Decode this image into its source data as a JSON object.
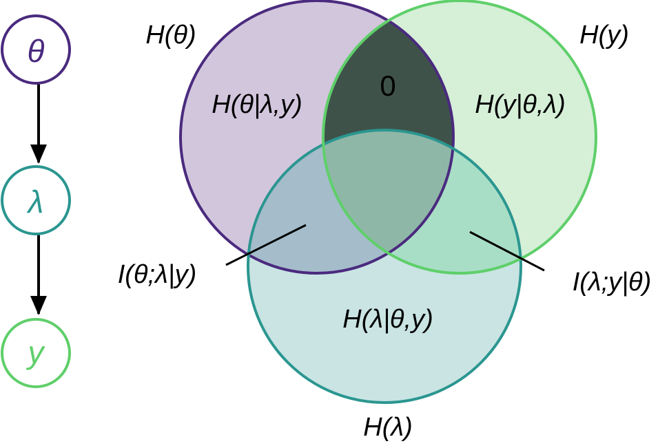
{
  "graph": {
    "nodes": [
      {
        "id": "theta",
        "label": "θ",
        "color": "#4a2a7e"
      },
      {
        "id": "lambda",
        "label": "λ",
        "color": "#2b9690"
      },
      {
        "id": "y",
        "label": "y",
        "color": "#5fcf6a"
      }
    ],
    "edges": [
      {
        "from": "theta",
        "to": "lambda"
      },
      {
        "from": "lambda",
        "to": "y"
      }
    ]
  },
  "venn": {
    "sets": {
      "theta": {
        "label": "H(θ)",
        "stroke": "#4a2a7e",
        "fill": "#d2c6dd"
      },
      "y": {
        "label": "H(y)",
        "stroke": "#5fcf6a",
        "fill": "#d6efd7"
      },
      "lambda": {
        "label": "H(λ)",
        "stroke": "#2b9690",
        "fill": "#c9e4e3"
      }
    },
    "regions": {
      "theta_only": "H(θ|λ,y)",
      "y_only": "H(y|θ,λ)",
      "lambda_only": "H(λ|θ,y)",
      "theta_y_not_lambda": "0",
      "theta_lambda_not_y": "I(θ;λ|y)",
      "lambda_y_not_theta": "I(λ;y|θ)"
    },
    "region_colors": {
      "theta_y": "#3e524a",
      "theta_lambda": "#a5bccb",
      "lambda_y": "#a9dec6",
      "center": "#8fb7a8"
    }
  }
}
